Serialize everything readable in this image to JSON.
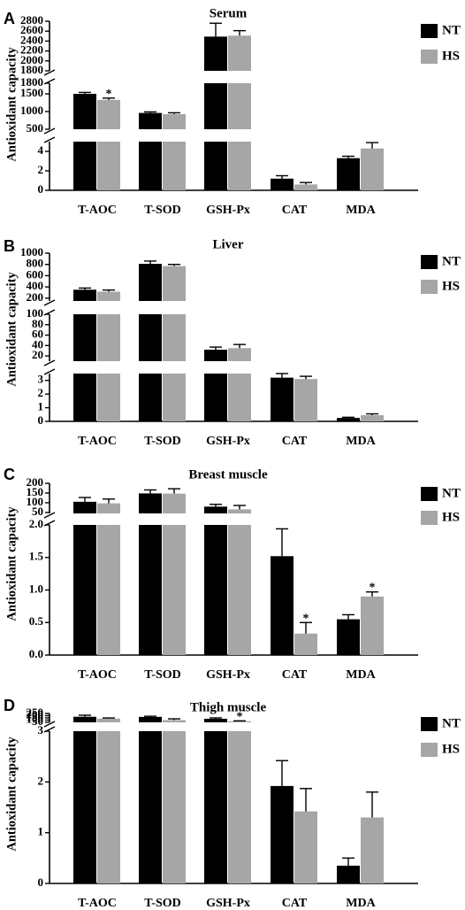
{
  "legend_series": [
    "NT",
    "HS"
  ],
  "colors": {
    "NT": "#000000",
    "HS": "#a6a6a6"
  },
  "chart_data": [
    {
      "panel": "A",
      "title": "Serum",
      "type": "bar",
      "ylabel": "Antioxidant capacity",
      "categories": [
        "T-AOC",
        "T-SOD",
        "GSH-Px",
        "CAT",
        "MDA"
      ],
      "series": [
        {
          "name": "NT",
          "values": [
            1500,
            960,
            2490,
            1.2,
            3.3
          ],
          "errors": [
            40,
            30,
            270,
            0.3,
            0.2
          ]
        },
        {
          "name": "HS",
          "values": [
            1330,
            925,
            2510,
            0.6,
            4.3
          ],
          "errors": [
            50,
            40,
            100,
            0.2,
            0.6
          ]
        }
      ],
      "significant": {
        "HS": [
          true,
          false,
          false,
          false,
          false
        ]
      },
      "axis_segments": [
        {
          "range": [
            0,
            5
          ],
          "ticks": [
            "0",
            "2",
            "4"
          ]
        },
        {
          "range": [
            500,
            1800
          ],
          "ticks": [
            "500",
            "1000",
            "1500",
            "1800"
          ]
        },
        {
          "range": [
            1800,
            2800
          ],
          "ticks": [
            "1800",
            "2000",
            "2200",
            "2400",
            "2600",
            "2800"
          ]
        }
      ]
    },
    {
      "panel": "B",
      "title": "Liver",
      "type": "bar",
      "ylabel": "Antioxidant capacity",
      "categories": [
        "T-AOC",
        "T-SOD",
        "GSH-Px",
        "CAT",
        "MDA"
      ],
      "series": [
        {
          "name": "NT",
          "values": [
            350,
            810,
            32,
            3.2,
            0.25
          ],
          "errors": [
            30,
            50,
            5,
            0.3,
            0.05
          ]
        },
        {
          "name": "HS",
          "values": [
            315,
            770,
            35,
            3.1,
            0.45
          ],
          "errors": [
            30,
            30,
            7,
            0.2,
            0.1
          ]
        }
      ],
      "significant": {
        "HS": [
          false,
          false,
          false,
          false,
          false
        ]
      },
      "axis_segments": [
        {
          "range": [
            0,
            3.5
          ],
          "ticks": [
            "0",
            "1",
            "2",
            "3"
          ]
        },
        {
          "range": [
            10,
            100
          ],
          "ticks": [
            "20",
            "40",
            "60",
            "80",
            "100"
          ]
        },
        {
          "range": [
            150,
            1000
          ],
          "ticks": [
            "200",
            "400",
            "600",
            "800",
            "1000"
          ]
        }
      ]
    },
    {
      "panel": "C",
      "title": "Breast muscle",
      "type": "bar",
      "ylabel": "Antioxidant capacity",
      "categories": [
        "T-AOC",
        "T-SOD",
        "GSH-Px",
        "CAT",
        "MDA"
      ],
      "series": [
        {
          "name": "NT",
          "values": [
            105,
            148,
            80,
            1.52,
            0.55
          ],
          "errors": [
            22,
            18,
            12,
            0.42,
            0.07
          ]
        },
        {
          "name": "HS",
          "values": [
            97,
            147,
            66,
            0.33,
            0.9
          ],
          "errors": [
            22,
            25,
            20,
            0.17,
            0.07
          ]
        }
      ],
      "significant": {
        "HS": [
          false,
          false,
          false,
          true,
          true
        ]
      },
      "axis_segments": [
        {
          "range": [
            0,
            2.0
          ],
          "ticks": [
            "0.0",
            "0.5",
            "1.0",
            "1.5",
            "2.0"
          ]
        },
        {
          "range": [
            45,
            200
          ],
          "ticks": [
            "50",
            "100",
            "150",
            "200"
          ]
        }
      ]
    },
    {
      "panel": "D",
      "title": "Thigh muscle",
      "type": "bar",
      "ylabel": "Antioxidant capacity",
      "categories": [
        "T-AOC",
        "T-SOD",
        "GSH-Px",
        "CAT",
        "MDA"
      ],
      "series": [
        {
          "name": "NT",
          "values": [
            175,
            172,
            130,
            1.92,
            0.35
          ],
          "errors": [
            35,
            15,
            20,
            0.5,
            0.15
          ]
        },
        {
          "name": "HS",
          "values": [
            133,
            98,
            72,
            1.42,
            1.3
          ],
          "errors": [
            15,
            30,
            10,
            0.45,
            0.5
          ]
        }
      ],
      "significant": {
        "HS": [
          false,
          false,
          true,
          false,
          false
        ]
      },
      "axis_segments": [
        {
          "range": [
            0,
            3
          ],
          "ticks": [
            "0",
            "1",
            "2",
            "3"
          ]
        },
        {
          "range": [
            48,
            250
          ],
          "ticks": [
            "50",
            "100",
            "150",
            "200",
            "250"
          ]
        }
      ]
    }
  ]
}
